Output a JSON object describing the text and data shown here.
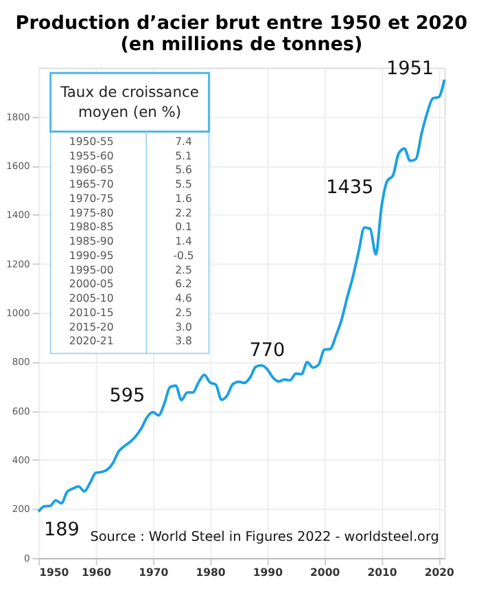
{
  "chart_data": [
    {
      "type": "line",
      "title": "Production d’acier brut entre 1950 et 2020",
      "subtitle": "(en millions de tonnes)",
      "x": [
        1950,
        1951,
        1952,
        1953,
        1954,
        1955,
        1956,
        1957,
        1958,
        1959,
        1960,
        1961,
        1962,
        1963,
        1964,
        1965,
        1966,
        1967,
        1968,
        1969,
        1970,
        1971,
        1972,
        1973,
        1974,
        1975,
        1976,
        1977,
        1978,
        1979,
        1980,
        1981,
        1982,
        1983,
        1984,
        1985,
        1986,
        1987,
        1988,
        1989,
        1990,
        1991,
        1992,
        1993,
        1994,
        1995,
        1996,
        1997,
        1998,
        1999,
        2000,
        2001,
        2002,
        2003,
        2004,
        2005,
        2006,
        2007,
        2008,
        2009,
        2010,
        2011,
        2012,
        2013,
        2014,
        2015,
        2016,
        2017,
        2018,
        2019,
        2020,
        2021
      ],
      "series": [
        {
          "color": "#1ba1e2",
          "values": [
            189,
            211,
            212,
            235,
            223,
            270,
            283,
            292,
            272,
            306,
            347,
            351,
            360,
            387,
            434,
            456,
            473,
            497,
            530,
            575,
            595,
            582,
            630,
            697,
            703,
            644,
            675,
            675,
            717,
            747,
            716,
            707,
            645,
            663,
            710,
            719,
            714,
            736,
            780,
            786,
            770,
            736,
            720,
            728,
            725,
            752,
            750,
            799,
            777,
            789,
            850,
            852,
            905,
            971,
            1063,
            1148,
            1250,
            1348,
            1343,
            1239,
            1433,
            1538,
            1560,
            1650,
            1670,
            1620,
            1627,
            1730,
            1817,
            1875,
            1880,
            1951
          ]
        }
      ],
      "xlim": [
        1950,
        2021
      ],
      "xticks": [
        1950,
        1960,
        1970,
        1980,
        1990,
        2000,
        2010,
        2020
      ],
      "ylim": [
        0,
        2000
      ],
      "yticks": [
        0,
        200,
        400,
        600,
        800,
        1000,
        1200,
        1400,
        1600,
        1800
      ],
      "grid": true,
      "marker": "none",
      "line_style": "solid",
      "annotations": [
        {
          "text": "189",
          "x": 1950,
          "y": 189
        },
        {
          "text": "595",
          "x": 1970,
          "y": 595
        },
        {
          "text": "770",
          "x": 1990,
          "y": 770
        },
        {
          "text": "1435",
          "x": 2010,
          "y": 1435
        },
        {
          "text": "1951",
          "x": 2021,
          "y": 1951
        },
        "Source : World Steel in Figures 2022 - worldsteel.org"
      ]
    },
    {
      "type": "other",
      "title": "Taux de croissance moyen (en %)",
      "categories": [
        "1950-55",
        "1955-60",
        "1960-65",
        "1965-70",
        "1970-75",
        "1975-80",
        "1980-85",
        "1985-90",
        "1990-95",
        "1995-00",
        "2000-05",
        "2005-10",
        "2010-15",
        "2015-20",
        "2020-21"
      ],
      "value_labels": [
        "7.4",
        "5.1",
        "5.6",
        "5.5",
        "1.6",
        "2.2",
        "0.1",
        "1.4",
        "-0.5",
        "2.5",
        "6.2",
        "4.6",
        "2.5",
        "3.0",
        "3.8"
      ]
    }
  ]
}
